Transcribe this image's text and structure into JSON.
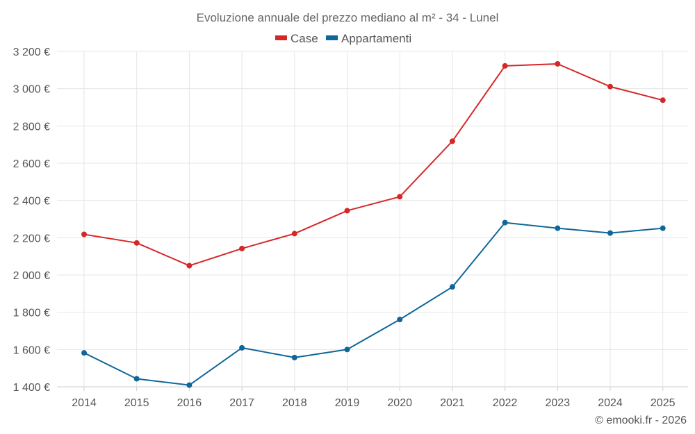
{
  "chart_data": {
    "type": "line",
    "title": "Evoluzione annuale del prezzo mediano al m² - 34 - Lunel",
    "categories": [
      "2014",
      "2015",
      "2016",
      "2017",
      "2018",
      "2019",
      "2020",
      "2021",
      "2022",
      "2023",
      "2024",
      "2025"
    ],
    "ylim": [
      1400,
      3200
    ],
    "yticks": [
      1400,
      1600,
      1800,
      2000,
      2200,
      2400,
      2600,
      2800,
      3000,
      3200
    ],
    "ytick_labels": [
      "1 400 €",
      "1 600 €",
      "1 800 €",
      "2 000 €",
      "2 200 €",
      "2 400 €",
      "2 600 €",
      "2 800 €",
      "3 000 €",
      "3 200 €"
    ],
    "legend_position": "top-center",
    "grid": true,
    "series": [
      {
        "name": "Case",
        "color": "#d62728",
        "values": [
          2218,
          2172,
          2050,
          2142,
          2222,
          2345,
          2420,
          2718,
          3122,
          3133,
          3011,
          2938
        ]
      },
      {
        "name": "Appartamenti",
        "color": "#0f6698",
        "values": [
          1582,
          1443,
          1409,
          1609,
          1557,
          1600,
          1761,
          1936,
          2281,
          2251,
          2225,
          2251
        ]
      }
    ],
    "credit": "© emooki.fr - 2026"
  }
}
